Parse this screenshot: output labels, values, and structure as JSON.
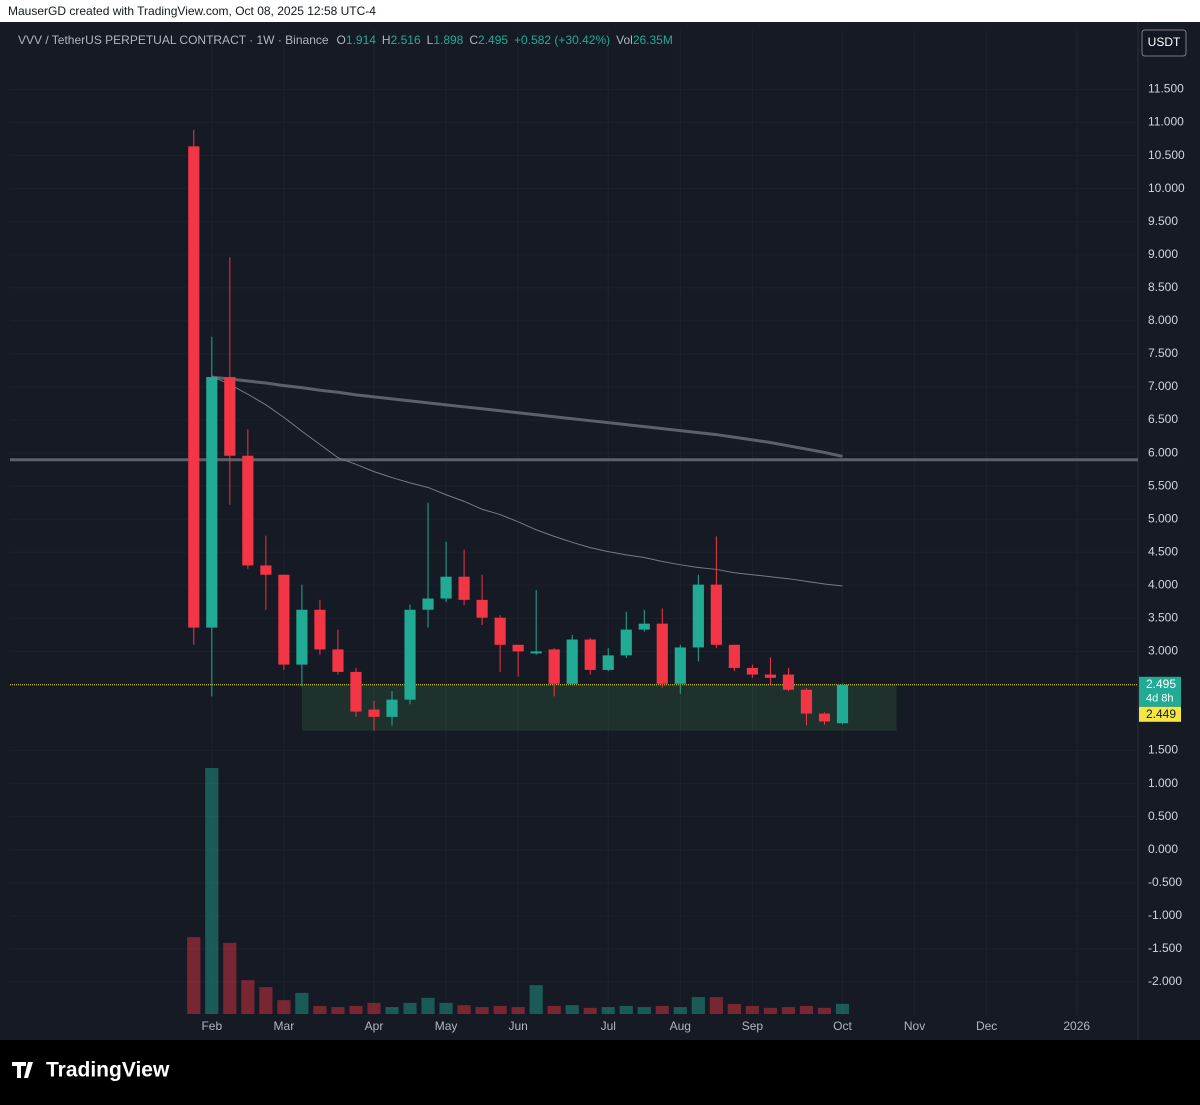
{
  "header": {
    "credit": "MauserGD created with TradingView.com, Oct 08, 2025 12:58 UTC-4",
    "currency": "USDT",
    "logo": "TradingView"
  },
  "chart_data": {
    "type": "candlestick",
    "title": "VVV / TetherUS PERPETUAL CONTRACT · 1W · Binance",
    "change": "+0.582 (+30.42%)",
    "ohlc_letters": [
      "O",
      "H",
      "L",
      "C"
    ],
    "volume_name": "Vol",
    "volume_label": "26.35M",
    "up_color": "#22ab94",
    "down_color": "#f23645",
    "open": [
      10.64,
      3.36,
      7.15,
      5.96,
      4.3,
      4.16,
      2.8,
      3.63,
      3.03,
      2.69,
      2.12,
      2.01,
      2.27,
      3.63,
      3.8,
      4.13,
      3.78,
      3.51,
      3.1,
      2.97,
      3.03,
      2.51,
      3.18,
      2.72,
      2.94,
      3.33,
      3.42,
      2.51,
      3.06,
      4.01,
      3.1,
      2.75,
      2.65,
      2.65,
      2.42,
      2.06,
      1.914
    ],
    "high": [
      10.89,
      7.76,
      8.96,
      6.36,
      4.75,
      4.16,
      4.01,
      3.78,
      3.33,
      2.75,
      2.25,
      2.4,
      3.71,
      5.25,
      4.66,
      4.54,
      4.16,
      3.55,
      3.1,
      3.93,
      3.05,
      3.25,
      3.2,
      3.05,
      3.6,
      3.63,
      3.65,
      3.1,
      4.16,
      4.74,
      3.1,
      2.8,
      2.91,
      2.75,
      2.45,
      2.08,
      2.516
    ],
    "low": [
      3.1,
      2.32,
      5.22,
      4.25,
      3.63,
      2.72,
      2.47,
      2.95,
      2.65,
      2.01,
      1.8,
      1.88,
      2.2,
      3.36,
      3.75,
      3.7,
      3.4,
      2.69,
      2.62,
      2.95,
      2.32,
      2.5,
      2.65,
      2.7,
      2.9,
      3.3,
      2.45,
      2.36,
      2.85,
      3.05,
      2.7,
      2.6,
      2.5,
      2.4,
      1.88,
      1.89,
      1.898
    ],
    "close": [
      3.36,
      7.15,
      5.96,
      4.3,
      4.16,
      2.8,
      3.63,
      3.03,
      2.69,
      2.09,
      2.01,
      2.27,
      3.63,
      3.8,
      4.13,
      3.78,
      3.51,
      3.1,
      3.0,
      3.0,
      2.51,
      3.18,
      2.72,
      2.94,
      3.33,
      3.42,
      2.51,
      3.06,
      4.01,
      3.1,
      2.75,
      2.65,
      2.6,
      2.42,
      2.06,
      1.94,
      2.495
    ],
    "volume": [
      200,
      640,
      185,
      88,
      70,
      36,
      55,
      21,
      18,
      21,
      29,
      18,
      29,
      42,
      29,
      23,
      18,
      21,
      18,
      75,
      21,
      23,
      16,
      18,
      21,
      18,
      21,
      18,
      44,
      44,
      26,
      21,
      16,
      18,
      21,
      16,
      26.35
    ],
    "ma_fast": [
      null,
      7.16,
      7.04,
      6.89,
      6.73,
      6.54,
      6.33,
      6.13,
      5.93,
      5.83,
      5.72,
      5.63,
      5.55,
      5.48,
      5.37,
      5.27,
      5.15,
      5.07,
      4.96,
      4.84,
      4.74,
      4.65,
      4.57,
      4.51,
      4.46,
      4.42,
      4.36,
      4.31,
      4.27,
      4.24,
      4.19,
      4.16,
      4.13,
      4.1,
      4.06,
      4.02,
      3.99
    ],
    "ma_slow": [
      null,
      7.15,
      7.12,
      7.09,
      7.06,
      7.02,
      6.99,
      6.95,
      6.92,
      6.88,
      6.85,
      6.82,
      6.79,
      6.76,
      6.73,
      6.7,
      6.67,
      6.64,
      6.61,
      6.58,
      6.55,
      6.52,
      6.49,
      6.46,
      6.43,
      6.4,
      6.37,
      6.34,
      6.31,
      6.28,
      6.24,
      6.2,
      6.16,
      6.11,
      6.06,
      6.01,
      5.95
    ],
    "hline": 5.9,
    "zone": {
      "ylim": [
        1.8,
        2.5
      ],
      "xlim": [
        6,
        39
      ],
      "color": "rgba(76,175,80,0.16)"
    },
    "price_label": {
      "value": 2.495,
      "countdown": "4d 8h"
    },
    "alt_label": 2.449,
    "xlim": [
      -10.2,
      52.4
    ],
    "xticks": [
      {
        "value": 1,
        "label": "Feb"
      },
      {
        "value": 5,
        "label": "Mar"
      },
      {
        "value": 10,
        "label": "Apr"
      },
      {
        "value": 14,
        "label": "May"
      },
      {
        "value": 18,
        "label": "Jun"
      },
      {
        "value": 23,
        "label": "Jul"
      },
      {
        "value": 27,
        "label": "Aug"
      },
      {
        "value": 31,
        "label": "Sep"
      },
      {
        "value": 36,
        "label": "Oct"
      },
      {
        "value": 40,
        "label": "Nov"
      },
      {
        "value": 44,
        "label": "Dec"
      },
      {
        "value": 49,
        "label": "2026"
      }
    ],
    "ylim": [
      -2.5,
      12.4
    ],
    "yticks": [
      {
        "value": -2,
        "label": "-2.000"
      },
      {
        "value": -1.5,
        "label": "-1.500"
      },
      {
        "value": -1,
        "label": "-1.000"
      },
      {
        "value": -0.5,
        "label": "-0.500"
      },
      {
        "value": 0,
        "label": "0.000"
      },
      {
        "value": 0.5,
        "label": "0.500"
      },
      {
        "value": 1,
        "label": "1.000"
      },
      {
        "value": 1.5,
        "label": "1.500"
      },
      {
        "value": 3,
        "label": "3.000"
      },
      {
        "value": 3.5,
        "label": "3.500"
      },
      {
        "value": 4,
        "label": "4.000"
      },
      {
        "value": 4.5,
        "label": "4.500"
      },
      {
        "value": 5,
        "label": "5.000"
      },
      {
        "value": 5.5,
        "label": "5.500"
      },
      {
        "value": 6,
        "label": "6.000"
      },
      {
        "value": 6.5,
        "label": "6.500"
      },
      {
        "value": 7,
        "label": "7.000"
      },
      {
        "value": 7.5,
        "label": "7.500"
      },
      {
        "value": 8,
        "label": "8.000"
      },
      {
        "value": 8.5,
        "label": "8.500"
      },
      {
        "value": 9,
        "label": "9.000"
      },
      {
        "value": 9.5,
        "label": "9.500"
      },
      {
        "value": 10,
        "label": "10.000"
      },
      {
        "value": 10.5,
        "label": "10.500"
      },
      {
        "value": 11,
        "label": "11.000"
      },
      {
        "value": 11.5,
        "label": "11.500"
      }
    ],
    "grid": true
  }
}
